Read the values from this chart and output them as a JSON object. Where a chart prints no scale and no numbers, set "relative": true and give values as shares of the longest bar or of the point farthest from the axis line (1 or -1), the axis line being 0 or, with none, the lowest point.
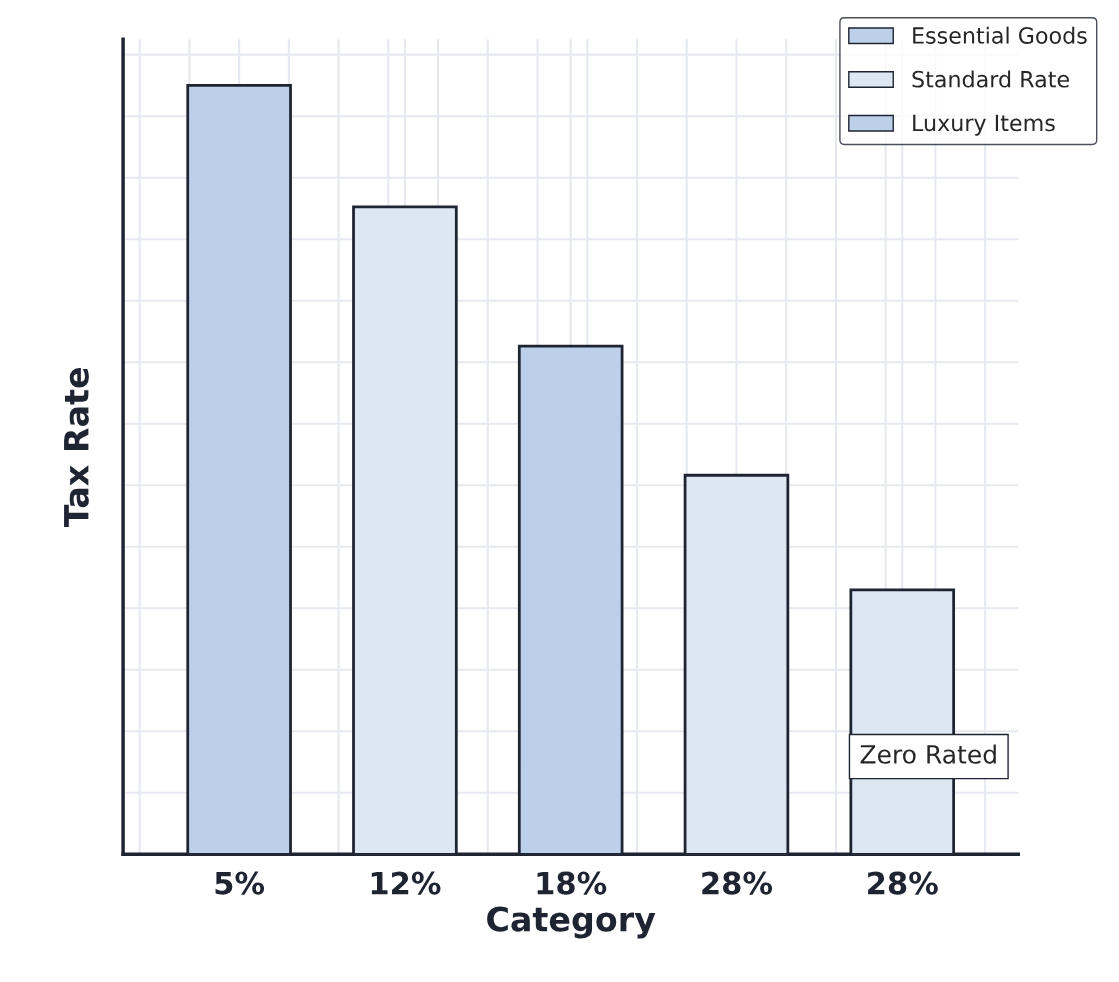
{
  "chart_data": {
    "type": "bar",
    "relative": true,
    "xlabel": "Category",
    "ylabel": "Tax Rate",
    "categories": [
      "5%",
      "12%",
      "18%",
      "28%",
      "28%"
    ],
    "series": [
      {
        "name": "Essential Goods",
        "color": "#bcd0ea",
        "values": [
          1,
          null,
          null,
          null,
          null
        ]
      },
      {
        "name": "Standard Rate",
        "color": "#dde7f4",
        "values": [
          null,
          0.842,
          null,
          0.493,
          0.344
        ]
      },
      {
        "name": "Luxury Items",
        "color": "#bcd0ea",
        "values": [
          null,
          null,
          0.661,
          null,
          null
        ]
      }
    ],
    "annotations": [
      "Zero Rated"
    ],
    "grid": true,
    "legend": "top right"
  }
}
